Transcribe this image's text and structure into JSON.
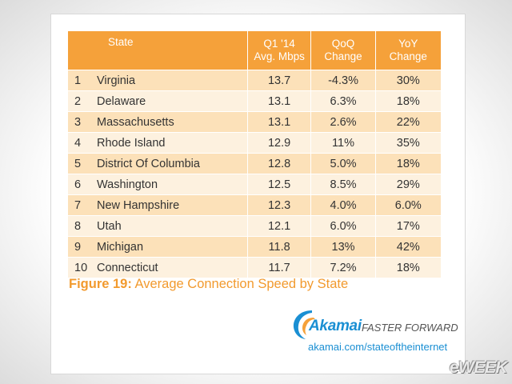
{
  "table": {
    "headers": {
      "state": "State",
      "speed_line1": "Q1 '14",
      "speed_line2": "Avg. Mbps",
      "qoq_line1": "QoQ",
      "qoq_line2": "Change",
      "yoy_line1": "YoY",
      "yoy_line2": "Change"
    },
    "rows": [
      {
        "rank": "1",
        "state": "Virginia",
        "speed": "13.7",
        "qoq": "-4.3%",
        "yoy": "30%"
      },
      {
        "rank": "2",
        "state": "Delaware",
        "speed": "13.1",
        "qoq": "6.3%",
        "yoy": "18%"
      },
      {
        "rank": "3",
        "state": "Massachusetts",
        "speed": "13.1",
        "qoq": "2.6%",
        "yoy": "22%"
      },
      {
        "rank": "4",
        "state": "Rhode Island",
        "speed": "12.9",
        "qoq": "11%",
        "yoy": "35%"
      },
      {
        "rank": "5",
        "state": "District Of Columbia",
        "speed": "12.8",
        "qoq": "5.0%",
        "yoy": "18%"
      },
      {
        "rank": "6",
        "state": "Washington",
        "speed": "12.5",
        "qoq": "8.5%",
        "yoy": "29%"
      },
      {
        "rank": "7",
        "state": "New Hampshire",
        "speed": "12.3",
        "qoq": "4.0%",
        "yoy": "6.0%"
      },
      {
        "rank": "8",
        "state": "Utah",
        "speed": "12.1",
        "qoq": "6.0%",
        "yoy": "17%"
      },
      {
        "rank": "9",
        "state": "Michigan",
        "speed": "11.8",
        "qoq": "13%",
        "yoy": "42%"
      },
      {
        "rank": "10",
        "state": "Connecticut",
        "speed": "11.7",
        "qoq": "7.2%",
        "yoy": "18%"
      }
    ]
  },
  "caption": {
    "label": "Figure 19:",
    "text": " Average Connection Speed by State"
  },
  "brand": {
    "logo_icon": "akamai-wave-icon",
    "name": "Akamai",
    "tagline": "FASTER FORWARD",
    "url": "akamai.com/stateoftheinternet"
  },
  "watermark": "eWEEK",
  "colors": {
    "header_orange": "#f5a13a",
    "row_dark": "#fce1b9",
    "row_light": "#fdf1df",
    "caption_orange": "#f29a2e",
    "akamai_blue": "#1a8fd3"
  }
}
